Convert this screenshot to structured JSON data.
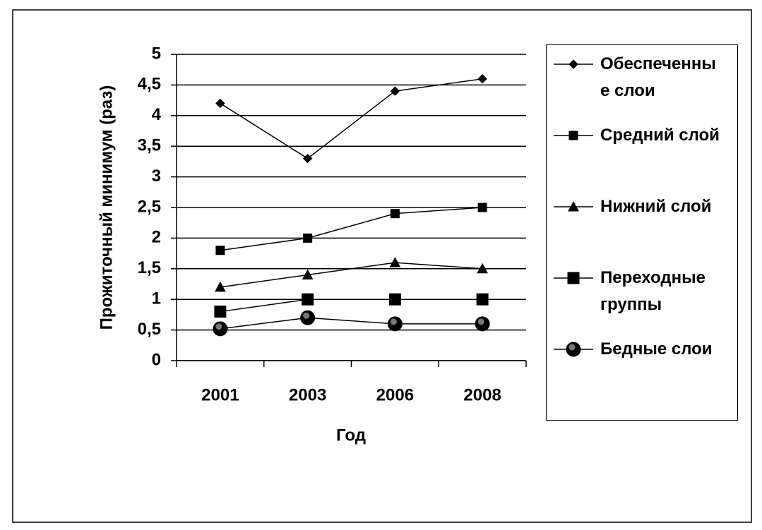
{
  "chart_data": {
    "type": "line",
    "x_label": "Год",
    "y_label": "Прожиточный минимум (раз)",
    "categories": [
      "2001",
      "2003",
      "2006",
      "2008"
    ],
    "series": [
      {
        "name": "Обеспеченные слои",
        "color": "#000000",
        "marker": "diamond",
        "values": [
          4.2,
          3.3,
          4.4,
          4.6
        ]
      },
      {
        "name": "Средний слой",
        "color": "#000000",
        "marker": "square",
        "values": [
          1.8,
          2.0,
          2.4,
          2.5
        ]
      },
      {
        "name": "Нижний слой",
        "color": "#000000",
        "marker": "triangle",
        "values": [
          1.2,
          1.4,
          1.6,
          1.5
        ]
      },
      {
        "name": "Переходные группы",
        "color": "#000000",
        "marker": "big-square",
        "values": [
          0.8,
          1.0,
          1.0,
          1.0
        ]
      },
      {
        "name": "Бедные слои",
        "color": "#000000",
        "marker": "circle",
        "values": [
          0.52,
          0.7,
          0.6,
          0.6
        ]
      }
    ],
    "ylim": [
      0,
      5
    ],
    "yticks": [
      0,
      {
        "value": 0.5,
        "label": "0,5"
      },
      1,
      {
        "value": 1.5,
        "label": "1,5"
      },
      2,
      {
        "value": 2.5,
        "label": "2,5"
      },
      3,
      {
        "value": 3.5,
        "label": "3,5"
      },
      4,
      {
        "value": 4.5,
        "label": "4,5"
      },
      5
    ],
    "grid": true,
    "legend": "right"
  }
}
